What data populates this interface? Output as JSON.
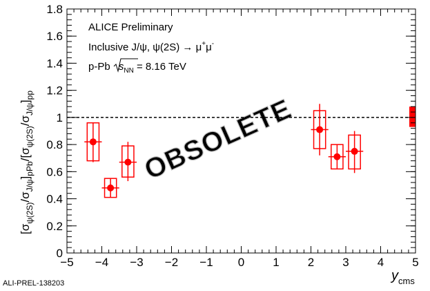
{
  "chart_data": {
    "type": "scatter",
    "title": "",
    "xlabel": "y",
    "xlabel_sub": "cms",
    "ylabel_parts": {
      "open1": "[σ",
      "sub1": "ψ(2S)",
      "mid1": "/σ",
      "sub2": "J/ψ",
      "close1": "]",
      "sub3": "pPb",
      "open2": "/[σ",
      "sub4": "ψ(2S)",
      "mid2": "/σ",
      "sub5": "J/ψ",
      "close2": "]",
      "sub6": "pp"
    },
    "xlim": [
      -5,
      5
    ],
    "ylim": [
      0,
      1.8
    ],
    "x_ticks": [
      -5,
      -4,
      -3,
      -2,
      -1,
      0,
      1,
      2,
      3,
      4,
      5
    ],
    "y_ticks": [
      0,
      0.2,
      0.4,
      0.6,
      0.8,
      1,
      1.2,
      1.4,
      1.6,
      1.8
    ],
    "x_tick_labels": [
      "−5",
      "−4",
      "−3",
      "−2",
      "−1",
      "0",
      "1",
      "2",
      "3",
      "4",
      "5"
    ],
    "y_tick_labels": [
      "0",
      "0.2",
      "0.4",
      "0.6",
      "0.8",
      "1",
      "1.2",
      "1.4",
      "1.6",
      "1.8"
    ],
    "grid": false,
    "reference_line": 1.0,
    "global_uncertainty": [
      0.93,
      1.08
    ],
    "color": "#ff0000",
    "points": [
      {
        "x": -4.25,
        "x_err": 0.25,
        "y": 0.82,
        "stat_low": 0.67,
        "stat_high": 0.96,
        "syst_low": 0.68,
        "syst_high": 0.96,
        "syst_half_width": 0.17
      },
      {
        "x": -3.75,
        "x_err": 0.25,
        "y": 0.48,
        "stat_low": 0.41,
        "stat_high": 0.55,
        "syst_low": 0.41,
        "syst_high": 0.55,
        "syst_half_width": 0.17
      },
      {
        "x": -3.25,
        "x_err": 0.25,
        "y": 0.67,
        "stat_low": 0.53,
        "stat_high": 0.82,
        "syst_low": 0.56,
        "syst_high": 0.79,
        "syst_half_width": 0.17
      },
      {
        "x": 2.25,
        "x_err": 0.25,
        "y": 0.91,
        "stat_low": 0.72,
        "stat_high": 1.1,
        "syst_low": 0.77,
        "syst_high": 1.05,
        "syst_half_width": 0.17
      },
      {
        "x": 2.75,
        "x_err": 0.25,
        "y": 0.71,
        "stat_low": 0.62,
        "stat_high": 0.8,
        "syst_low": 0.62,
        "syst_high": 0.8,
        "syst_half_width": 0.17
      },
      {
        "x": 3.25,
        "x_err": 0.25,
        "y": 0.75,
        "stat_low": 0.59,
        "stat_high": 0.9,
        "syst_low": 0.62,
        "syst_high": 0.87,
        "syst_half_width": 0.17
      }
    ],
    "legend": {
      "placement": "top-left",
      "line1": "ALICE Preliminary",
      "line2_prefix": "Inclusive J/ψ, ψ(2S) → μ",
      "line2_sup1": "+",
      "line2_mid": "μ",
      "line2_sup2": "-",
      "line3_prefix": "p-Pb ",
      "line3_s": "s",
      "line3_sub": "NN",
      "line3_suffix": " = 8.16 TeV"
    },
    "watermark": "OBSOLETE",
    "footer_id": "ALI-PREL-138203"
  }
}
